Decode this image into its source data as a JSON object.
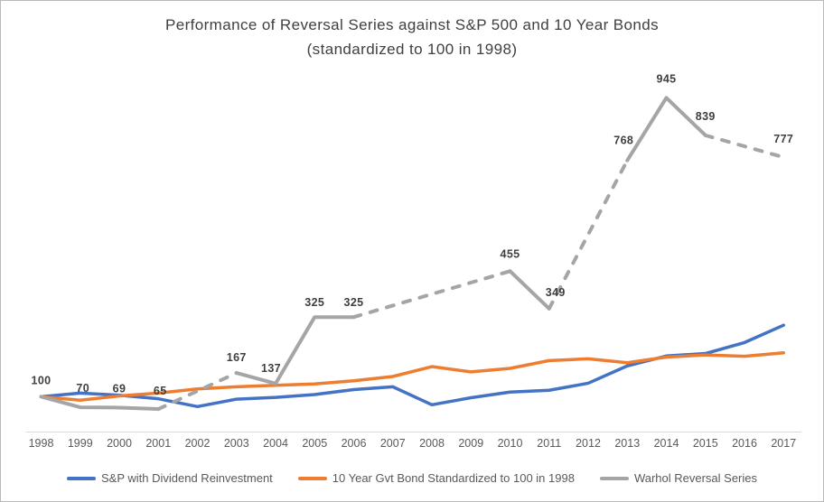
{
  "title": {
    "line1": "Performance of Reversal Series against S&P 500 and 10 Year Bonds",
    "line2": "(standardized to 100 in 1998)"
  },
  "colors": {
    "sp500": "#4472C4",
    "bond": "#ED7D31",
    "warhol": "#A5A5A5",
    "title_text": "#404040",
    "axis_text": "#595959",
    "data_label_text": "#3F3F3F",
    "axis_line": "#D9D9D9",
    "frame_border": "#B9B9B9",
    "background": "#FFFFFF"
  },
  "chart_data": {
    "type": "line",
    "title": "Performance of Reversal Series against S&P 500 and 10 Year Bonds (standardized to 100 in 1998)",
    "x": [
      1998,
      1999,
      2000,
      2001,
      2002,
      2003,
      2004,
      2005,
      2006,
      2007,
      2008,
      2009,
      2010,
      2011,
      2012,
      2013,
      2014,
      2015,
      2016,
      2017
    ],
    "x_tick_labels": [
      "1998",
      "1999",
      "2000",
      "2001",
      "2002",
      "2003",
      "2004",
      "2005",
      "2006",
      "2007",
      "2008",
      "2009",
      "2010",
      "2011",
      "2012",
      "2013",
      "2014",
      "2015",
      "2016",
      "2017"
    ],
    "ylim": [
      0,
      1050
    ],
    "grid": false,
    "legend_position": "bottom",
    "series": [
      {
        "name": "S&P with Dividend Reinvestment",
        "color": "#4472C4",
        "line_style": "solid",
        "values": [
          100,
          110,
          104,
          94,
          72,
          93,
          98,
          106,
          120,
          128,
          77,
          97,
          113,
          118,
          138,
          187,
          215,
          222,
          253,
          302
        ]
      },
      {
        "name": "10 Year Gvt Bond Standardized to 100 in 1998",
        "color": "#ED7D31",
        "line_style": "solid",
        "values": [
          100,
          90,
          102,
          110,
          122,
          128,
          132,
          136,
          145,
          157,
          185,
          170,
          180,
          202,
          207,
          196,
          212,
          218,
          214,
          224
        ]
      },
      {
        "name": "Warhol Reversal Series",
        "color": "#A5A5A5",
        "line_style": "solid-with-dashed-bridges-over-missing-years",
        "values": [
          100,
          70,
          69,
          65,
          null,
          167,
          137,
          325,
          325,
          null,
          null,
          null,
          455,
          349,
          null,
          768,
          945,
          839,
          null,
          777
        ],
        "show_data_labels": true,
        "data_labels": [
          100,
          70,
          69,
          65,
          null,
          167,
          137,
          325,
          325,
          null,
          null,
          null,
          455,
          349,
          null,
          768,
          945,
          839,
          null,
          777
        ],
        "dashed_gap_year_spans": [
          [
            2001,
            2003
          ],
          [
            2006,
            2010
          ],
          [
            2011,
            2013
          ],
          [
            2015,
            2017
          ]
        ]
      }
    ]
  }
}
